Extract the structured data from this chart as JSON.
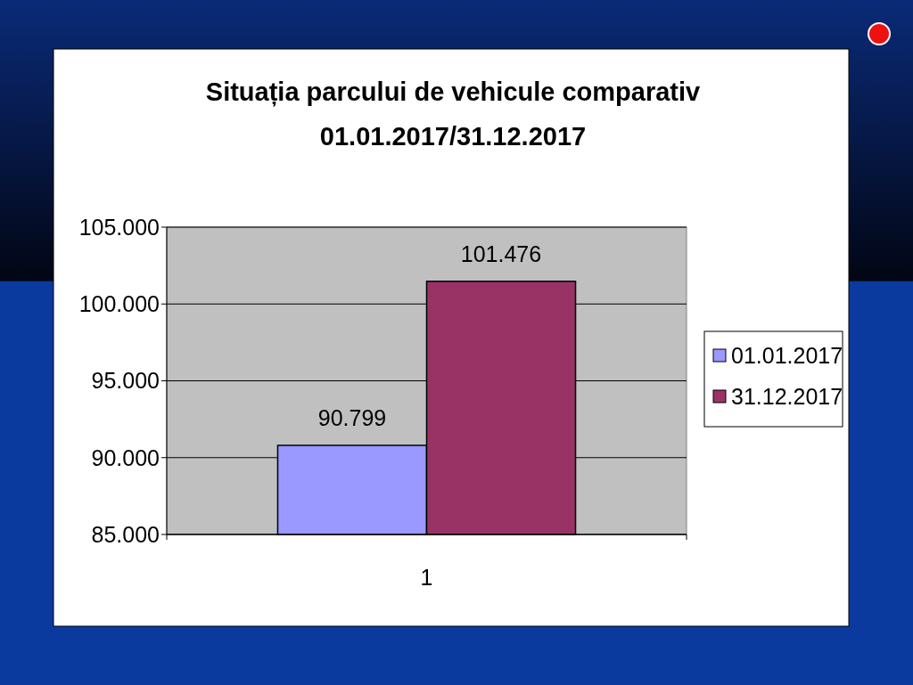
{
  "chart_data": {
    "type": "bar",
    "title": "Situația parcului de vehicule comparativ\n01.01.2017/31.12.2017",
    "categories": [
      "1"
    ],
    "series": [
      {
        "name": "01.01.2017",
        "color": "#9999ff",
        "values": [
          90799
        ],
        "value_labels": [
          "90.799"
        ]
      },
      {
        "name": "31.12.2017",
        "color": "#993366",
        "values": [
          101476
        ],
        "value_labels": [
          "101.476"
        ]
      }
    ],
    "ylim": [
      85000,
      105000
    ],
    "yticks": [
      {
        "value": 85000,
        "label": "85.000"
      },
      {
        "value": 90000,
        "label": "90.000"
      },
      {
        "value": 95000,
        "label": "95.000"
      },
      {
        "value": 100000,
        "label": "100.000"
      },
      {
        "value": 105000,
        "label": "105.000"
      }
    ],
    "grid": "y",
    "legend": "right"
  }
}
